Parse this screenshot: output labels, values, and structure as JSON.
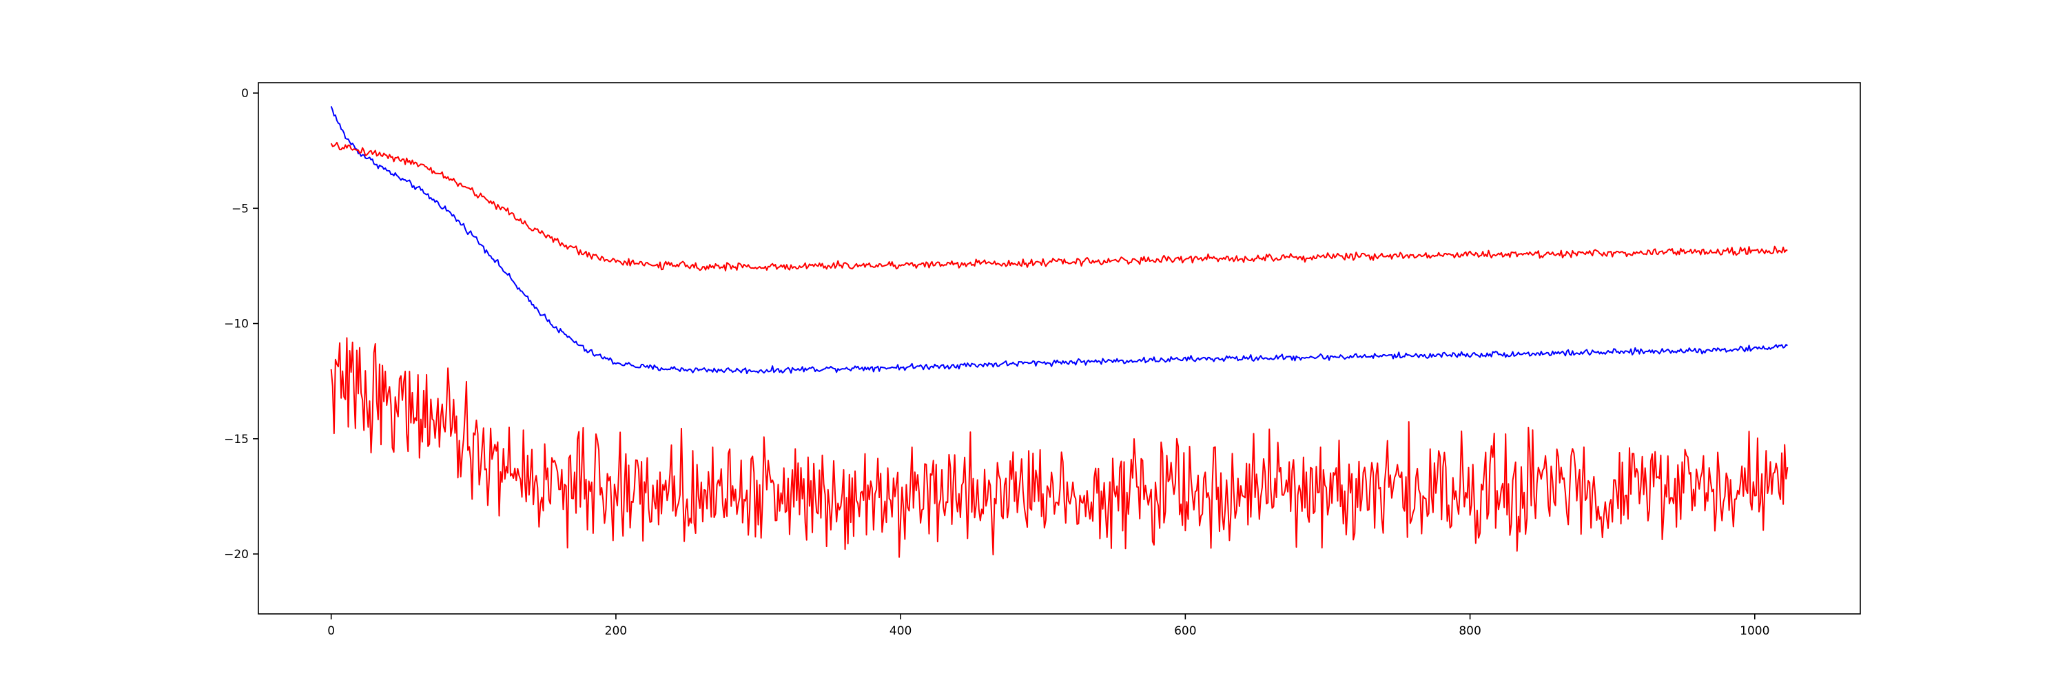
{
  "chart_data": {
    "type": "line",
    "title": "",
    "xlabel": "",
    "ylabel": "",
    "xlim": [
      -51.15,
      1074.15
    ],
    "ylim": [
      -22.6,
      0.45
    ],
    "xticks": [
      0,
      200,
      400,
      600,
      800,
      1000
    ],
    "yticks": [
      0,
      -5,
      -10,
      -15,
      -20
    ],
    "xtick_labels": [
      "0",
      "200",
      "400",
      "600",
      "800",
      "1000"
    ],
    "ytick_labels": [
      "0",
      "−5",
      "−10",
      "−15",
      "−20"
    ],
    "grid": false,
    "legend": null,
    "series": [
      {
        "color": "#0000ff",
        "n_points": 1024,
        "noise_amplitude": 0.08,
        "anchors_x": [
          0,
          5,
          10,
          20,
          40,
          60,
          80,
          100,
          120,
          140,
          160,
          180,
          200,
          220,
          250,
          300,
          350,
          400,
          500,
          600,
          700,
          800,
          900,
          1000,
          1023
        ],
        "anchors_y": [
          -0.6,
          -1.3,
          -1.9,
          -2.6,
          -3.4,
          -4.1,
          -5.0,
          -6.2,
          -7.6,
          -9.1,
          -10.3,
          -11.2,
          -11.7,
          -11.9,
          -12.0,
          -12.05,
          -11.95,
          -11.9,
          -11.7,
          -11.55,
          -11.45,
          -11.35,
          -11.25,
          -11.1,
          -10.95
        ]
      },
      {
        "color": "#ff0000",
        "n_points": 1024,
        "noise_amplitude": 0.1,
        "anchors_x": [
          0,
          10,
          20,
          40,
          60,
          80,
          100,
          120,
          140,
          160,
          180,
          200,
          220,
          250,
          300,
          350,
          400,
          500,
          600,
          700,
          800,
          900,
          1000,
          1023
        ],
        "anchors_y": [
          -2.3,
          -2.35,
          -2.5,
          -2.7,
          -3.1,
          -3.6,
          -4.3,
          -5.0,
          -5.8,
          -6.5,
          -7.0,
          -7.3,
          -7.45,
          -7.5,
          -7.55,
          -7.5,
          -7.45,
          -7.35,
          -7.2,
          -7.1,
          -7.0,
          -6.95,
          -6.85,
          -6.85
        ]
      },
      {
        "color": "#ff0000",
        "n_points": 1024,
        "noise_amplitude": 1.35,
        "anchors_x": [
          0,
          20,
          40,
          60,
          80,
          100,
          120,
          150,
          200,
          300,
          400,
          600,
          800,
          1000,
          1023
        ],
        "anchors_y": [
          -12.6,
          -12.8,
          -13.2,
          -13.8,
          -14.5,
          -15.5,
          -16.3,
          -16.9,
          -17.2,
          -17.3,
          -17.3,
          -17.3,
          -17.2,
          -17.1,
          -17.0
        ]
      }
    ]
  }
}
